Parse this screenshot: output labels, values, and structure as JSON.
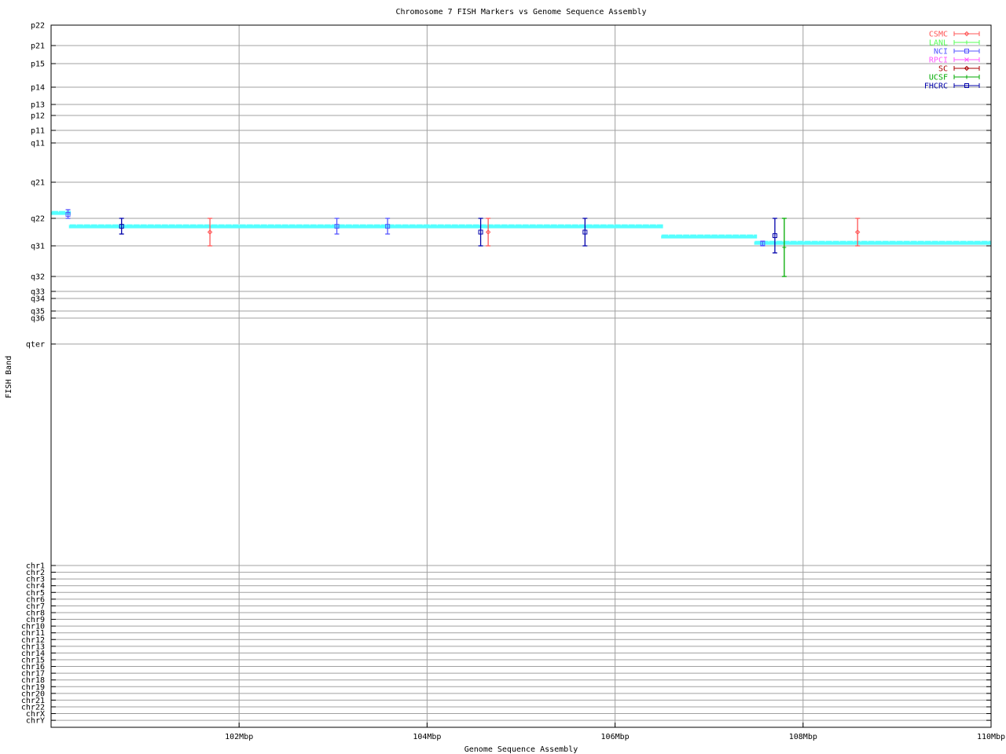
{
  "chart_data": {
    "type": "scatter",
    "title": "Chromosome 7 FISH Markers vs Genome Sequence Assembly",
    "xlabel": "Genome Sequence Assembly",
    "ylabel": "FISH Band",
    "xlim": [
      100,
      110
    ],
    "x_ticks": [
      {
        "value": 102,
        "label": "102Mbp"
      },
      {
        "value": 104,
        "label": "104Mbp"
      },
      {
        "value": 106,
        "label": "106Mbp"
      },
      {
        "value": 108,
        "label": "108Mbp"
      },
      {
        "value": 110,
        "label": "110Mbp"
      }
    ],
    "y_scale_note": "y values are band-tick indices (0 = p22 at top, increasing downward; fractions lie between adjacent band ticks)",
    "y_ticks": [
      "p22",
      "p21",
      "p15",
      "p14",
      "p13",
      "p12",
      "p11",
      "q11",
      "q21",
      "q22",
      "q31",
      "q32",
      "q33",
      "q34",
      "q35",
      "q36",
      "qter",
      "chr1",
      "chr2",
      "chr3",
      "chr4",
      "chr5",
      "chr6",
      "chr7",
      "chr8",
      "chr9",
      "chr10",
      "chr11",
      "chr12",
      "chr13",
      "chr14",
      "chr15",
      "chr16",
      "chr17",
      "chr18",
      "chr19",
      "chr20",
      "chr21",
      "chr22",
      "chrX",
      "chrY"
    ],
    "grid": true,
    "legend_position": "top-right",
    "series": [
      {
        "name": "CSMC",
        "color": "#ff5555",
        "marker": "diamond",
        "points": [
          {
            "x": 101.69,
            "y": 9.5,
            "ylow": 9,
            "yhigh": 10
          },
          {
            "x": 104.65,
            "y": 9.5,
            "ylow": 9,
            "yhigh": 10
          },
          {
            "x": 108.58,
            "y": 9.5,
            "ylow": 9,
            "yhigh": 10
          }
        ]
      },
      {
        "name": "LANL",
        "color": "#55ff55",
        "marker": "plus",
        "points": []
      },
      {
        "name": "NCI",
        "color": "#5555ff",
        "marker": "square",
        "points": [
          {
            "x": 100.18,
            "y": 8.89,
            "ylow": 8.76,
            "yhigh": 9
          },
          {
            "x": 103.04,
            "y": 9.29,
            "ylow": 9,
            "yhigh": 9.57
          },
          {
            "x": 103.58,
            "y": 9.29,
            "ylow": 9,
            "yhigh": 9.57
          },
          {
            "x": 107.57,
            "y": 9.91,
            "ylow": 9.83,
            "yhigh": 10
          }
        ]
      },
      {
        "name": "RPCI",
        "color": "#ff55ff",
        "marker": "cross",
        "points": []
      },
      {
        "name": "SC",
        "color": "#aa0000",
        "marker": "diamond",
        "points": []
      },
      {
        "name": "UCSF",
        "color": "#00aa00",
        "marker": "plus",
        "points": [
          {
            "x": 107.8,
            "y": 10.05,
            "ylow": 9,
            "yhigh": 11
          }
        ]
      },
      {
        "name": "FHCRC",
        "color": "#0000aa",
        "marker": "square",
        "points": [
          {
            "x": 100.75,
            "y": 9.29,
            "ylow": 9,
            "yhigh": 9.57
          },
          {
            "x": 104.57,
            "y": 9.5,
            "ylow": 9,
            "yhigh": 10
          },
          {
            "x": 105.68,
            "y": 9.5,
            "ylow": 9,
            "yhigh": 10
          },
          {
            "x": 107.7,
            "y": 9.63,
            "ylow": 9,
            "yhigh": 10.23
          }
        ]
      }
    ],
    "assembly": {
      "color": "#55ffff",
      "segments": [
        {
          "x0": 100.0,
          "x1": 100.21,
          "y": 8.85
        },
        {
          "x0": 100.19,
          "x1": 106.51,
          "y": 9.29
        },
        {
          "x0": 106.49,
          "x1": 107.51,
          "y": 9.66
        },
        {
          "x0": 107.48,
          "x1": 110.0,
          "y": 9.89
        }
      ]
    }
  }
}
